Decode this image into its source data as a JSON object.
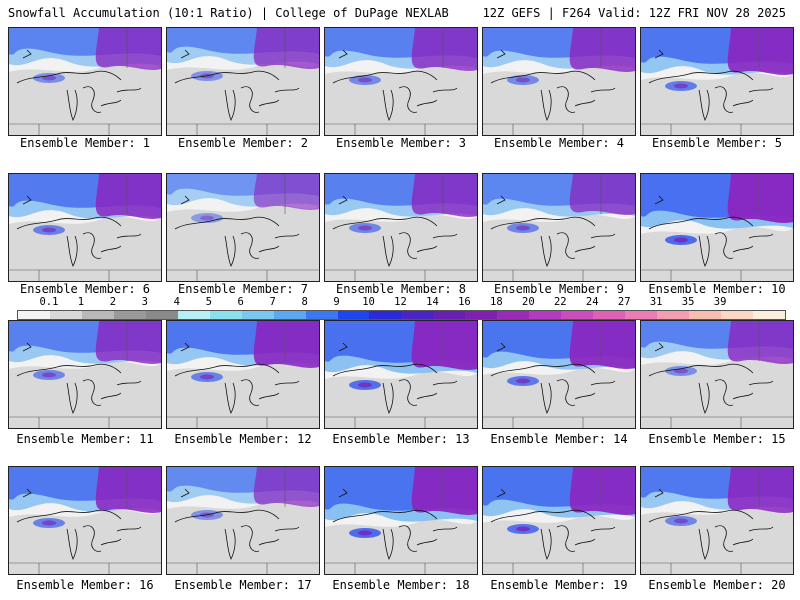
{
  "header": {
    "left_title": "Snowfall Accumulation (10:1 Ratio) | College of DuPage NEXLAB",
    "right_title": "12Z GEFS | F264 Valid: 12Z FRI NOV 28 2025"
  },
  "colorbar": {
    "ticks": [
      "0.1",
      "1",
      "2",
      "3",
      "4",
      "5",
      "6",
      "7",
      "8",
      "9",
      "10",
      "12",
      "14",
      "16",
      "18",
      "20",
      "22",
      "24",
      "27",
      "31",
      "35",
      "39"
    ],
    "colors": [
      "#f4f4f4",
      "#d8d8d8",
      "#b9b9b9",
      "#9a9a9a",
      "#8a8a8a",
      "#b4f0f4",
      "#8ae0ec",
      "#78c8f0",
      "#5aa8f0",
      "#3c78f0",
      "#1e46f0",
      "#2a2ad8",
      "#4a24c4",
      "#6a1eb4",
      "#7e20b0",
      "#9a2ab8",
      "#b43ac0",
      "#cc4cbc",
      "#e060b8",
      "#ec7cb4",
      "#f49cb0",
      "#f8bcb0",
      "#fcd8c4",
      "#fceedc"
    ],
    "colors_meaning": "snowfall color scale"
  },
  "panels": [
    {
      "label": "Ensemble Member: 1",
      "icon": "snowfall-map-1"
    },
    {
      "label": "Ensemble Member: 2",
      "icon": "snowfall-map-2"
    },
    {
      "label": "Ensemble Member: 3",
      "icon": "snowfall-map-3"
    },
    {
      "label": "Ensemble Member: 4",
      "icon": "snowfall-map-4"
    },
    {
      "label": "Ensemble Member: 5",
      "icon": "snowfall-map-5"
    },
    {
      "label": "Ensemble Member: 6",
      "icon": "snowfall-map-6"
    },
    {
      "label": "Ensemble Member: 7",
      "icon": "snowfall-map-7"
    },
    {
      "label": "Ensemble Member: 8",
      "icon": "snowfall-map-8"
    },
    {
      "label": "Ensemble Member: 9",
      "icon": "snowfall-map-9"
    },
    {
      "label": "Ensemble Member: 10",
      "icon": "snowfall-map-10"
    },
    {
      "label": "Ensemble Member: 11",
      "icon": "snowfall-map-11"
    },
    {
      "label": "Ensemble Member: 12",
      "icon": "snowfall-map-12"
    },
    {
      "label": "Ensemble Member: 13",
      "icon": "snowfall-map-13"
    },
    {
      "label": "Ensemble Member: 14",
      "icon": "snowfall-map-14"
    },
    {
      "label": "Ensemble Member: 15",
      "icon": "snowfall-map-15"
    },
    {
      "label": "Ensemble Member: 16",
      "icon": "snowfall-map-16"
    },
    {
      "label": "Ensemble Member: 17",
      "icon": "snowfall-map-17"
    },
    {
      "label": "Ensemble Member: 18",
      "icon": "snowfall-map-18"
    },
    {
      "label": "Ensemble Member: 19",
      "icon": "snowfall-map-19"
    },
    {
      "label": "Ensemble Member: 20",
      "icon": "snowfall-map-20"
    }
  ]
}
